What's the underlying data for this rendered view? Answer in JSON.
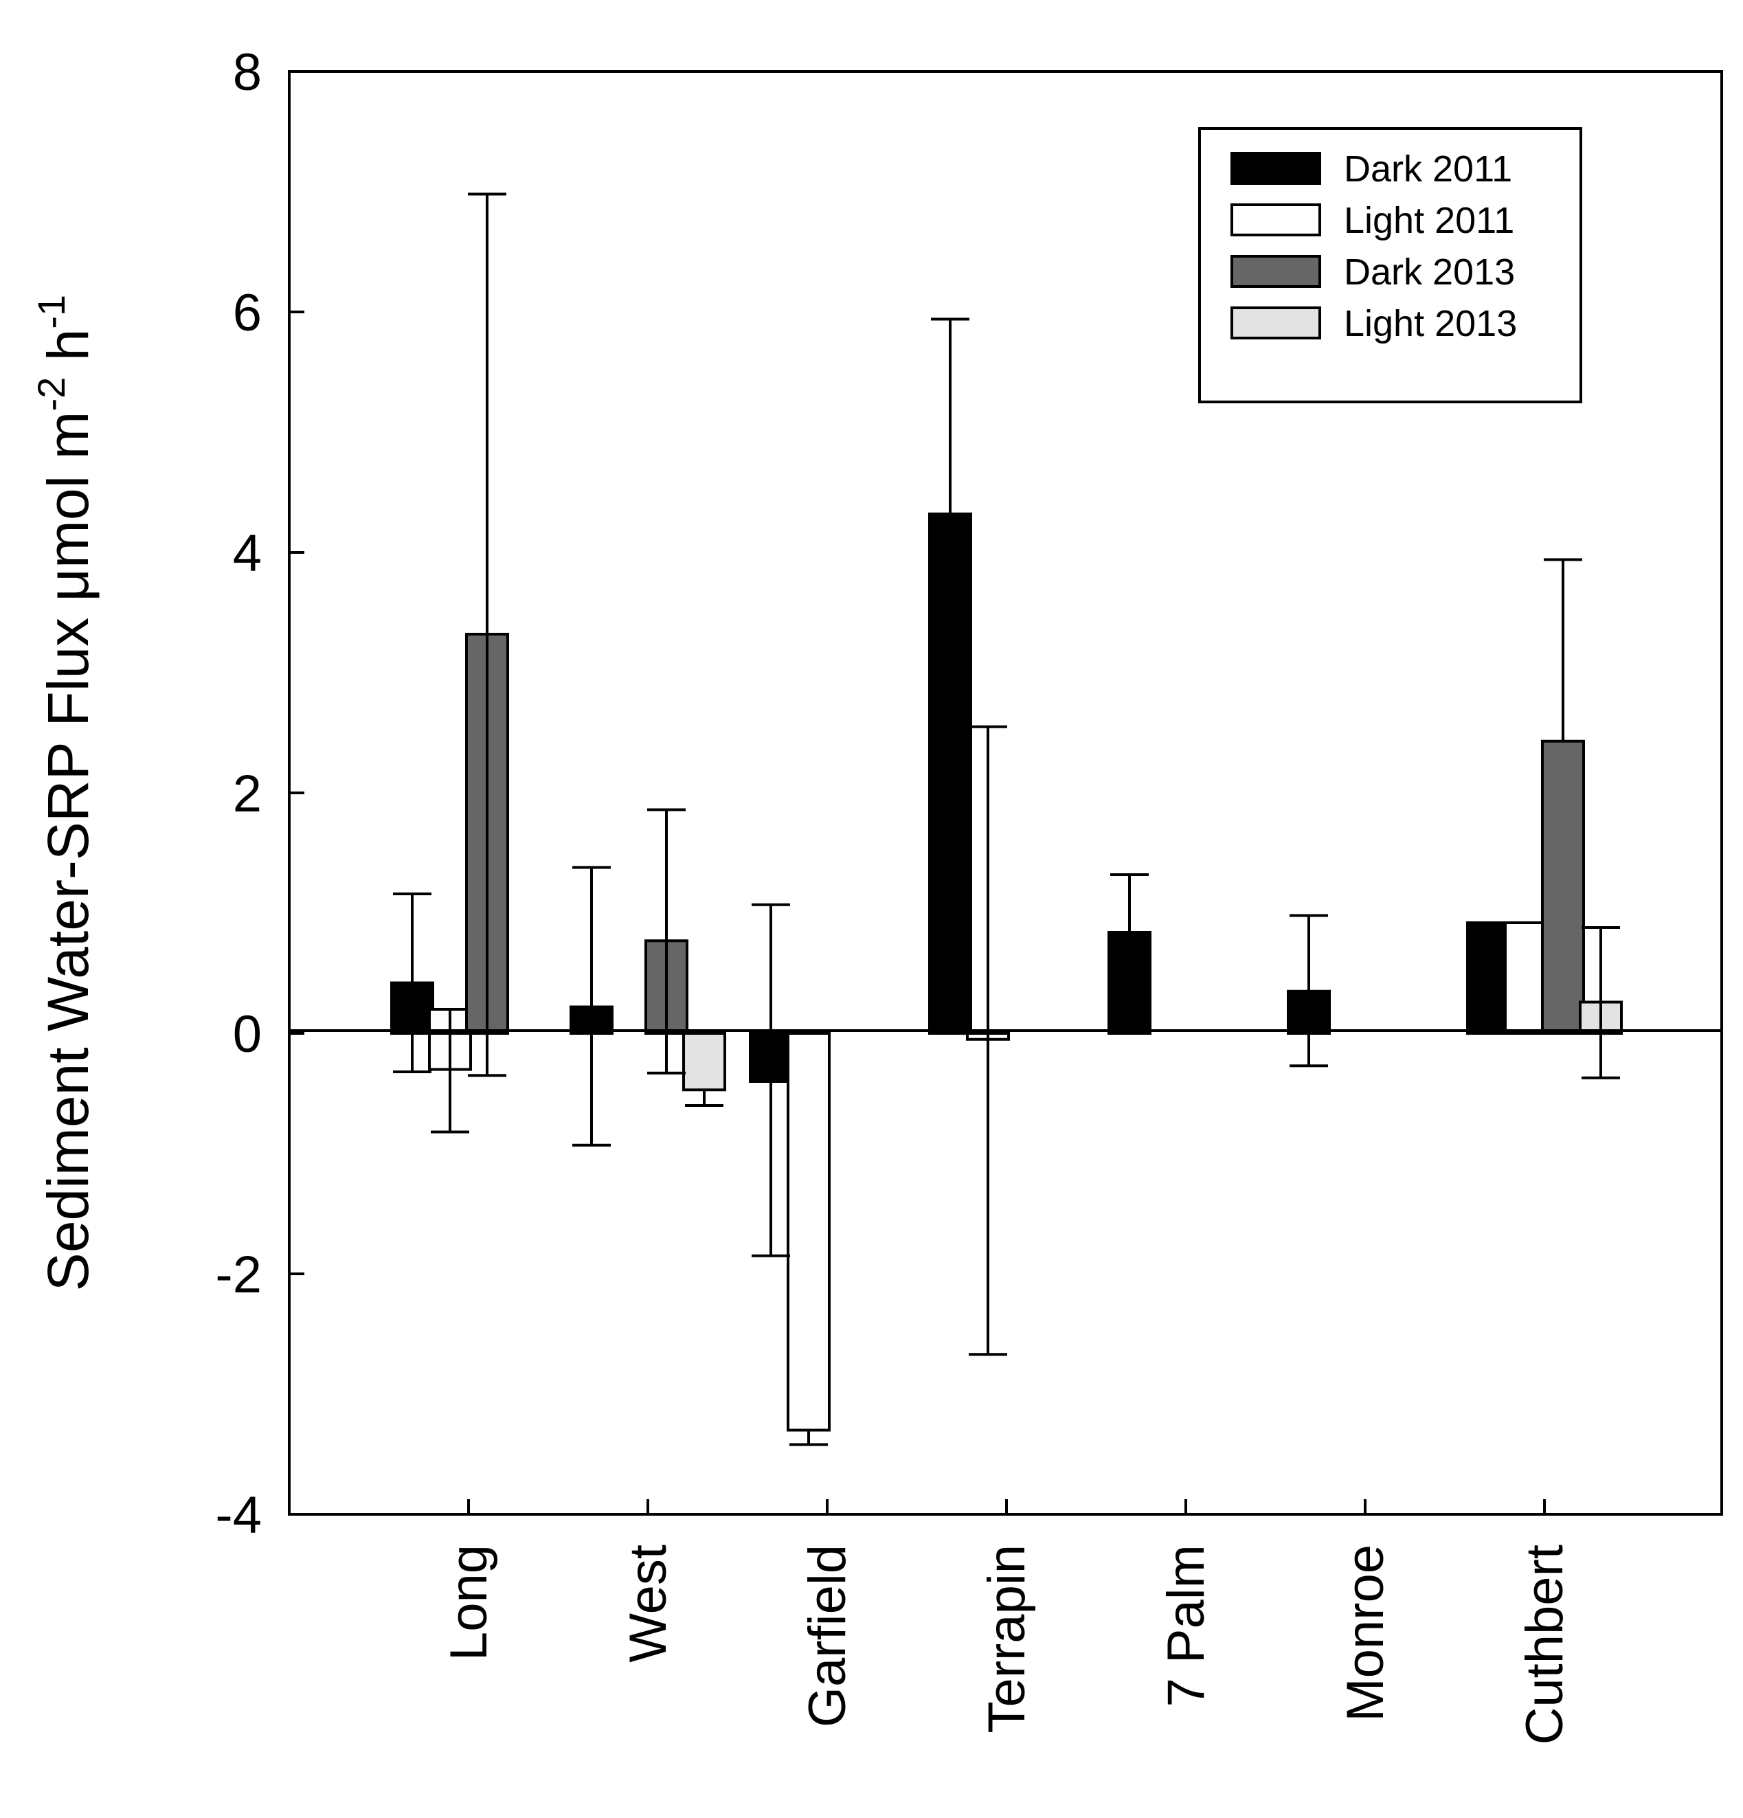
{
  "chart_data": {
    "type": "bar",
    "title": "",
    "xlabel": "",
    "ylabel": "Sediment Water-SRP Flux  μmol m-2 h-1",
    "ylabel_parts": {
      "main": "Sediment Water-SRP Flux  ",
      "mu": "μ",
      "unit1": "mol m",
      "sup1": "-2",
      "unit2": " h",
      "sup2": "-1"
    },
    "ylim": [
      -4,
      8
    ],
    "yticks": [
      -4,
      -2,
      0,
      2,
      4,
      6,
      8
    ],
    "ytick_labels": [
      "-4",
      "-2",
      "0",
      "2",
      "4",
      "6",
      "8"
    ],
    "categories": [
      "Long",
      "West",
      "Garfield",
      "Terrapin",
      "7 Palm",
      "Monroe",
      "Cuthbert"
    ],
    "legend_position": "top-right",
    "series": [
      {
        "name": "Dark 2011",
        "color": "#000000",
        "values": [
          0.42,
          0.22,
          -0.4,
          4.32,
          0.84,
          0.35,
          0.92
        ],
        "err_low": [
          -0.32,
          -0.93,
          -1.85,
          null,
          null,
          -0.27,
          null
        ],
        "err_high": [
          1.16,
          1.38,
          1.07,
          5.94,
          1.32,
          0.98,
          null
        ]
      },
      {
        "name": "Light 2011",
        "color": "#ffffff",
        "values": [
          0.2,
          null,
          -3.3,
          -0.05,
          null,
          null,
          0.92
        ],
        "err_low": [
          -0.82,
          null,
          -3.42,
          -2.67,
          null,
          null,
          null
        ],
        "err_high": [
          null,
          null,
          null,
          2.55,
          null,
          null,
          null
        ]
      },
      {
        "name": "Dark 2013",
        "color": "#666666",
        "values": [
          3.32,
          0.77,
          null,
          null,
          null,
          null,
          2.43
        ],
        "err_low": [
          -0.35,
          -0.33,
          null,
          null,
          null,
          null,
          null
        ],
        "err_high": [
          6.98,
          1.86,
          null,
          null,
          null,
          null,
          3.94
        ]
      },
      {
        "name": "Light 2013",
        "color": "#e3e3e3",
        "values": [
          null,
          -0.47,
          null,
          null,
          null,
          null,
          0.26
        ],
        "err_low": [
          null,
          -0.6,
          null,
          null,
          null,
          null,
          -0.37
        ],
        "err_high": [
          null,
          null,
          null,
          null,
          null,
          null,
          0.88
        ]
      }
    ],
    "overlays": [
      {
        "category": "Long",
        "value": -0.3,
        "err_low": null
      }
    ]
  }
}
